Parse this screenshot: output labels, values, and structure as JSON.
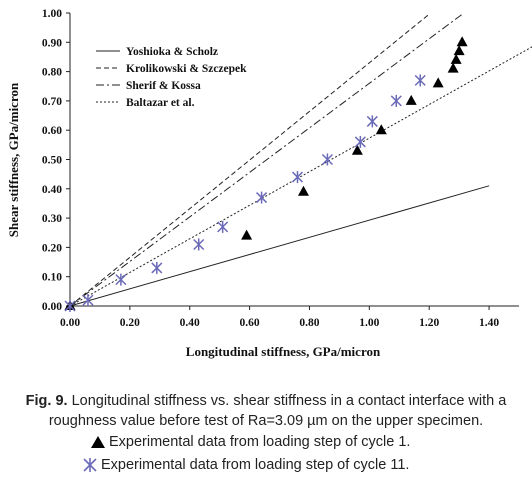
{
  "chart_data": {
    "type": "scatter",
    "xlabel": "Longitudinal stiffness, GPa/micron",
    "ylabel": "Shear stiffness, GPa/micron",
    "xlim": [
      0,
      1.5
    ],
    "ylim": [
      0,
      1.0
    ],
    "x_ticks": [
      "0.00",
      "0.20",
      "0.40",
      "0.60",
      "0.80",
      "1.00",
      "1.20",
      "1.40"
    ],
    "y_ticks": [
      "0.00",
      "0.10",
      "0.20",
      "0.30",
      "0.40",
      "0.50",
      "0.60",
      "0.70",
      "0.80",
      "0.90",
      "1.00"
    ],
    "grid": false,
    "legend_position": "top-left",
    "model_lines": [
      {
        "name": "Yoshioka & Scholz",
        "style": "solid",
        "slope": 0.293,
        "x_end": 1.4
      },
      {
        "name": "Krolikowski & Szczepek",
        "style": "dashed",
        "slope": 0.83,
        "x_end": 1.2
      },
      {
        "name": "Sherif & Kossa",
        "style": "dashdot",
        "slope": 0.76,
        "x_end": 1.5
      },
      {
        "name": "Baltazar et al.",
        "style": "dotted",
        "slope": 0.573,
        "x_end": 1.55
      }
    ],
    "series": [
      {
        "name": "Experimental data from loading step of cycle 1.",
        "marker": "triangle",
        "x": [
          0.0,
          0.59,
          0.78,
          0.96,
          1.04,
          1.14,
          1.23,
          1.28,
          1.29,
          1.3,
          1.31
        ],
        "y": [
          0.0,
          0.24,
          0.39,
          0.53,
          0.6,
          0.7,
          0.76,
          0.81,
          0.84,
          0.87,
          0.9
        ]
      },
      {
        "name": "Experimental data from loading step of cycle 11.",
        "marker": "asterisk",
        "x": [
          0.0,
          0.06,
          0.17,
          0.29,
          0.43,
          0.51,
          0.64,
          0.76,
          0.86,
          0.97,
          1.01,
          1.09,
          1.17
        ],
        "y": [
          0.0,
          0.02,
          0.09,
          0.13,
          0.21,
          0.27,
          0.37,
          0.44,
          0.5,
          0.56,
          0.63,
          0.7,
          0.77
        ]
      }
    ]
  },
  "caption": {
    "fig_label": "Fig. 9.",
    "line1_rest": " Longitudinal stiffness vs. shear stiffness in a contact interface with a",
    "line2": "roughness value before test of Ra=3.09 µm on the upper specimen."
  },
  "legend_bottom": {
    "triangle_text": "Experimental data from loading step of cycle 1.",
    "asterisk_text": "Experimental data from loading step of cycle 11."
  }
}
